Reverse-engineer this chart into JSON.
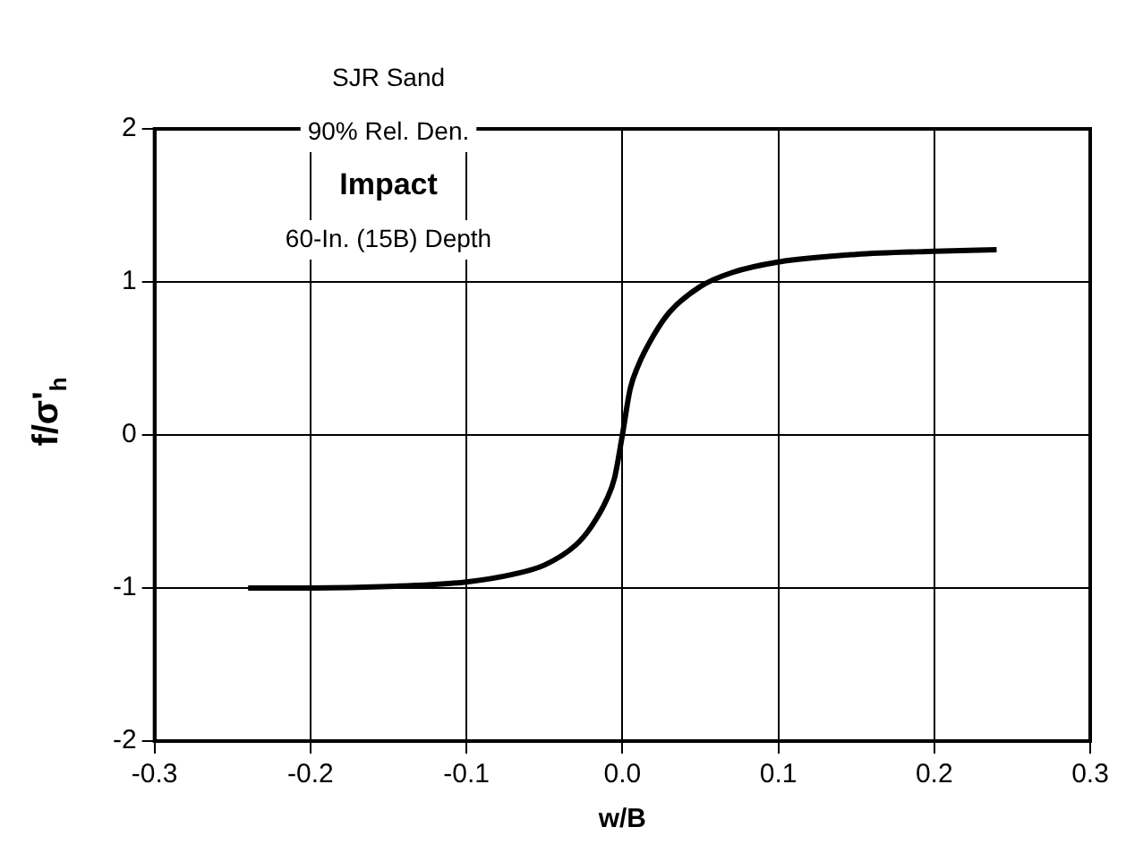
{
  "chart_data": {
    "type": "line",
    "xlabel": "w/B",
    "ylabel": "f/σ'$_{h}$",
    "annotations": [
      "SJR Sand",
      "90% Rel. Den.",
      "Impact",
      "60-In. (15B) Depth"
    ],
    "series": [
      {
        "color": "#000000",
        "x": [
          -0.24,
          -0.2,
          -0.15,
          -0.1,
          -0.07,
          -0.05,
          -0.03,
          -0.02,
          -0.01,
          -0.005,
          0,
          0.005,
          0.01,
          0.02,
          0.03,
          0.05,
          0.07,
          0.1,
          0.15,
          0.2,
          0.24
        ],
        "values": [
          -1.0,
          -1.0,
          -0.99,
          -0.96,
          -0.91,
          -0.85,
          -0.72,
          -0.6,
          -0.42,
          -0.28,
          0,
          0.3,
          0.45,
          0.65,
          0.8,
          0.97,
          1.06,
          1.13,
          1.18,
          1.2,
          1.21
        ]
      }
    ],
    "xlim": [
      -0.3,
      0.3
    ],
    "xticks": [
      {
        "value": -0.3,
        "label": "-0.3"
      },
      {
        "value": -0.2,
        "label": "-0.2"
      },
      {
        "value": -0.1,
        "label": "-0.1"
      },
      {
        "value": 0,
        "label": "0.0"
      },
      {
        "value": 0.1,
        "label": "0.1"
      },
      {
        "value": 0.2,
        "label": "0.2"
      },
      {
        "value": 0.3,
        "label": "0.3"
      }
    ],
    "ylim": [
      -2,
      2
    ],
    "yticks": [
      -2,
      -1,
      0,
      1,
      2
    ],
    "grid": true,
    "legend": false,
    "marker": "none",
    "line_style": "solid"
  }
}
